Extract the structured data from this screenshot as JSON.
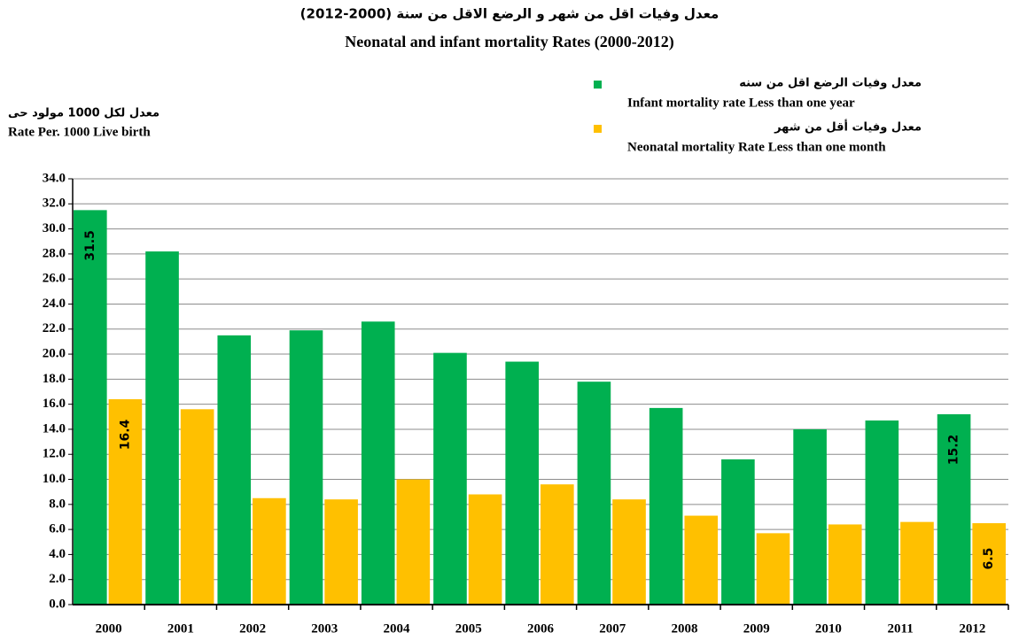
{
  "chart_data": {
    "type": "bar",
    "title": "معدل وفيات اقل من شهر و الرضع الاقل من سنة (2000-2012)",
    "subtitle": "Neonatal and infant mortality Rates (2000-2012)",
    "y_label_ar": "معدل لكل 1000 مولود حى",
    "y_label": "Rate Per. 1000 Live birth",
    "categories": [
      "2000",
      "2001",
      "2002",
      "2003",
      "2004",
      "2005",
      "2006",
      "2007",
      "2008",
      "2009",
      "2010",
      "2011",
      "2012"
    ],
    "series": [
      {
        "name": "Infant mortality rate Less than one year",
        "name_ar": "معدل وفيات الرضع اقل من سنه",
        "color": "#00b050",
        "values": [
          31.5,
          28.2,
          21.5,
          21.9,
          22.6,
          20.1,
          19.4,
          17.8,
          15.7,
          11.6,
          14.0,
          14.7,
          15.2
        ],
        "value_labels": [
          "31.5",
          null,
          null,
          null,
          null,
          null,
          null,
          null,
          null,
          null,
          null,
          null,
          "15.2"
        ]
      },
      {
        "name": "Neonatal mortality Rate Less than one month",
        "name_ar": "معدل وفيات أقل من شهر",
        "color": "#ffc000",
        "values": [
          16.4,
          15.6,
          8.5,
          8.4,
          10.0,
          8.8,
          9.6,
          8.4,
          7.1,
          5.7,
          6.4,
          6.6,
          6.5
        ],
        "value_labels": [
          "16.4",
          null,
          null,
          null,
          null,
          null,
          null,
          null,
          null,
          null,
          null,
          null,
          "6.5"
        ]
      }
    ],
    "ylim": [
      0,
      34
    ],
    "yticks": [
      {
        "value": 0,
        "label": "0.0"
      },
      {
        "value": 2,
        "label": "2.0"
      },
      {
        "value": 4,
        "label": "4.0"
      },
      {
        "value": 6,
        "label": "6.0"
      },
      {
        "value": 8,
        "label": "8.0"
      },
      {
        "value": 10,
        "label": "10.0"
      },
      {
        "value": 12,
        "label": "12.0"
      },
      {
        "value": 14,
        "label": "14.0"
      },
      {
        "value": 16,
        "label": "16.0"
      },
      {
        "value": 18,
        "label": "18.0"
      },
      {
        "value": 20,
        "label": "20.0"
      },
      {
        "value": 22,
        "label": "22.0"
      },
      {
        "value": 24,
        "label": "24.0"
      },
      {
        "value": 26,
        "label": "26.0"
      },
      {
        "value": 28,
        "label": "28.0"
      },
      {
        "value": 30,
        "label": "30.0"
      },
      {
        "value": 32,
        "label": "32.0"
      },
      {
        "value": 34,
        "label": "34.0"
      }
    ],
    "grid": true
  }
}
